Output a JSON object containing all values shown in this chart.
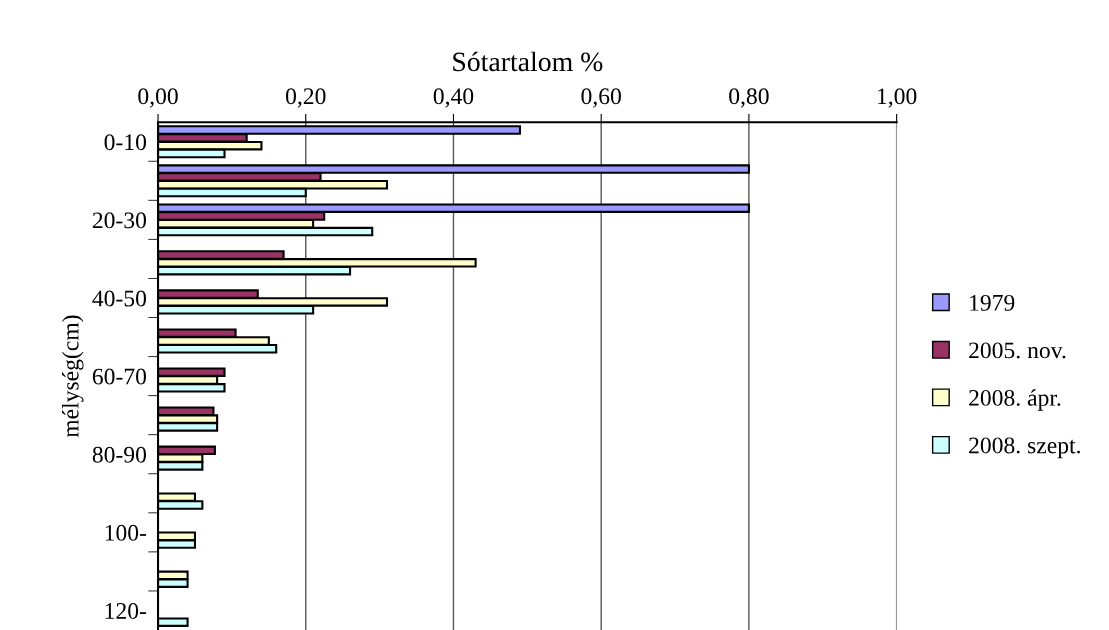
{
  "chart_data": {
    "type": "bar",
    "orientation": "horizontal",
    "xlabel": "Sótartalom %",
    "ylabel": "mélység(cm)",
    "categories": [
      "0-10",
      null,
      "20-30",
      null,
      "40-50",
      null,
      "60-70",
      null,
      "80-90",
      null,
      "100-",
      null,
      "120-"
    ],
    "series": [
      {
        "name": "1979",
        "color": "#9999ff",
        "values": [
          0.49,
          0.8,
          0.8,
          null,
          null,
          null,
          null,
          null,
          null,
          null,
          null,
          null,
          null
        ]
      },
      {
        "name": "2005. nov.",
        "color": "#993366",
        "values": [
          0.12,
          0.22,
          0.225,
          0.17,
          0.135,
          0.105,
          0.09,
          0.075,
          0.077,
          null,
          null,
          null,
          null
        ]
      },
      {
        "name": "2008. ápr.",
        "color": "#ffffcc",
        "values": [
          0.14,
          0.31,
          0.21,
          0.43,
          0.31,
          0.15,
          0.08,
          0.08,
          0.06,
          0.05,
          0.05,
          0.04,
          null
        ]
      },
      {
        "name": "2008. szept.",
        "color": "#ccffff",
        "values": [
          0.09,
          0.2,
          0.29,
          0.26,
          0.21,
          0.16,
          0.09,
          0.08,
          0.06,
          0.06,
          0.05,
          0.04,
          0.04
        ]
      }
    ],
    "xlim": [
      0,
      1
    ],
    "xticks": [
      {
        "value": 0,
        "label": "0,00"
      },
      {
        "value": 0.2,
        "label": "0,20"
      },
      {
        "value": 0.4,
        "label": "0,40"
      },
      {
        "value": 0.6,
        "label": "0,60"
      },
      {
        "value": 0.8,
        "label": "0,80"
      },
      {
        "value": 1.0,
        "label": "1,00"
      }
    ],
    "grid": "x",
    "legend": "right"
  }
}
